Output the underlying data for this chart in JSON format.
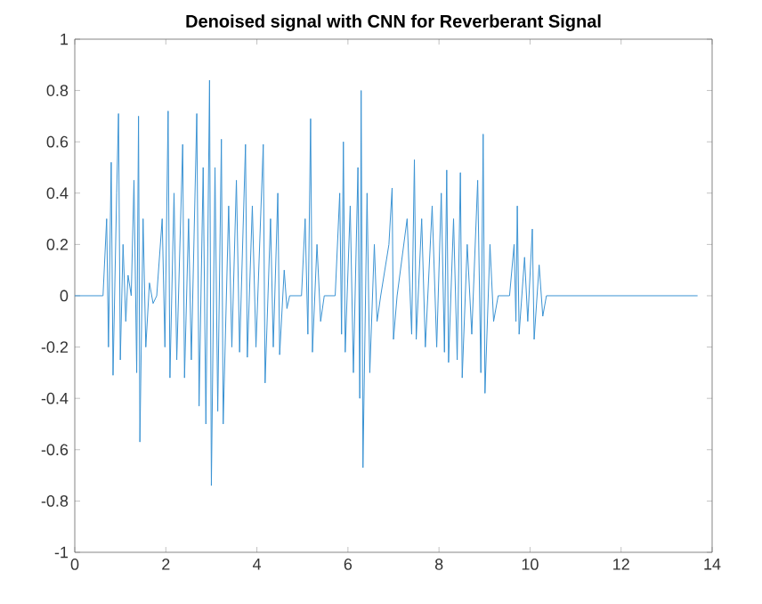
{
  "chart_data": {
    "type": "line",
    "title": "Denoised signal with CNN for Reverberant Signal",
    "color": "#3a93d3",
    "line_style": "solid",
    "x": [
      0,
      0.62,
      0.7,
      0.74,
      0.8,
      0.84,
      0.92,
      0.96,
      1.0,
      1.06,
      1.12,
      1.17,
      1.24,
      1.3,
      1.36,
      1.4,
      1.43,
      1.5,
      1.56,
      1.64,
      1.72,
      1.8,
      1.92,
      1.98,
      2.05,
      2.09,
      2.18,
      2.24,
      2.37,
      2.41,
      2.5,
      2.56,
      2.68,
      2.73,
      2.82,
      2.88,
      2.96,
      3.0,
      3.08,
      3.14,
      3.22,
      3.26,
      3.38,
      3.45,
      3.55,
      3.62,
      3.75,
      3.79,
      3.9,
      3.98,
      4.14,
      4.18,
      4.3,
      4.36,
      4.46,
      4.5,
      4.6,
      4.66,
      4.72,
      4.98,
      5.06,
      5.12,
      5.18,
      5.22,
      5.32,
      5.4,
      5.48,
      5.72,
      5.82,
      5.86,
      5.9,
      5.94,
      6.05,
      6.12,
      6.22,
      6.26,
      6.29,
      6.33,
      6.42,
      6.48,
      6.58,
      6.64,
      6.72,
      6.9,
      6.97,
      7.0,
      7.08,
      7.3,
      7.4,
      7.46,
      7.5,
      7.62,
      7.7,
      7.85,
      7.95,
      8.05,
      8.12,
      8.17,
      8.21,
      8.32,
      8.4,
      8.47,
      8.51,
      8.62,
      8.72,
      8.85,
      8.92,
      8.97,
      9.01,
      9.12,
      9.2,
      9.3,
      9.55,
      9.65,
      9.69,
      9.72,
      9.76,
      9.88,
      9.95,
      10.05,
      10.09,
      10.2,
      10.28,
      10.36,
      13.68
    ],
    "values": [
      0,
      0,
      0.3,
      -0.2,
      0.52,
      -0.31,
      0.4,
      0.71,
      -0.25,
      0.2,
      -0.1,
      0.08,
      0,
      0.45,
      -0.3,
      0.7,
      -0.57,
      0.3,
      -0.2,
      0.05,
      -0.03,
      0,
      0.3,
      -0.2,
      0.72,
      -0.32,
      0.4,
      -0.25,
      0.59,
      -0.32,
      0.3,
      -0.25,
      0.71,
      -0.43,
      0.5,
      -0.5,
      0.84,
      -0.74,
      0.5,
      -0.45,
      0.61,
      -0.5,
      0.35,
      -0.2,
      0.45,
      -0.22,
      0.59,
      -0.24,
      0.35,
      -0.2,
      0.59,
      -0.34,
      0.3,
      -0.2,
      0.4,
      -0.23,
      0.1,
      -0.05,
      0,
      0,
      0.3,
      -0.15,
      0.69,
      -0.22,
      0.2,
      -0.1,
      0,
      0,
      0.4,
      -0.15,
      0.6,
      -0.22,
      0.35,
      -0.3,
      0.5,
      -0.4,
      0.8,
      -0.67,
      0.4,
      -0.3,
      0.2,
      -0.1,
      0,
      0.2,
      0.42,
      -0.17,
      0,
      0.3,
      -0.15,
      0.53,
      -0.17,
      0.3,
      -0.2,
      0.35,
      -0.2,
      0.4,
      -0.22,
      0.49,
      -0.26,
      0.3,
      -0.25,
      0.48,
      -0.32,
      0.2,
      -0.15,
      0.45,
      -0.3,
      0.63,
      -0.38,
      0.2,
      -0.1,
      0,
      0,
      0.2,
      -0.1,
      0.35,
      -0.15,
      0.15,
      -0.1,
      0.26,
      -0.17,
      0.12,
      -0.08,
      0,
      0
    ],
    "xlim": [
      0,
      14
    ],
    "ylim": [
      -1,
      1
    ],
    "xticks": [
      0,
      2,
      4,
      6,
      8,
      10,
      12,
      14
    ],
    "yticks": [
      -1,
      -0.8,
      -0.6,
      -0.4,
      -0.2,
      0,
      0.2,
      0.4,
      0.6,
      0.8,
      1
    ]
  }
}
